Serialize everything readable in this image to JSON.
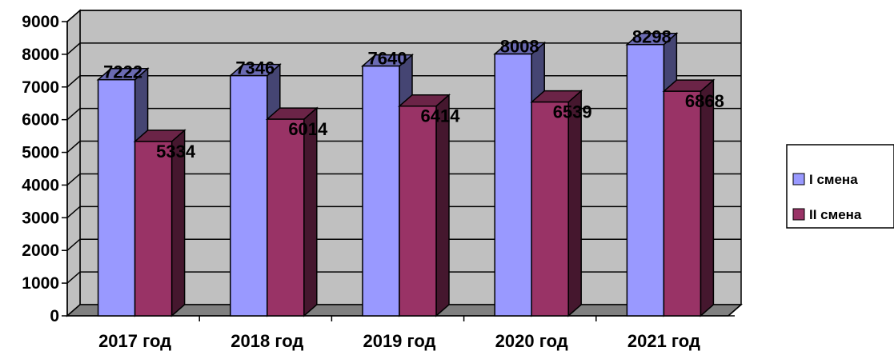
{
  "chart_data": {
    "type": "bar",
    "categories": [
      "2017 год",
      "2018 год",
      "2019 год",
      "2020 год",
      "2021 год"
    ],
    "series": [
      {
        "name": "I смена",
        "values": [
          7222,
          7346,
          7640,
          8008,
          8298
        ],
        "color": "#9999ff"
      },
      {
        "name": "II смена",
        "values": [
          5334,
          6014,
          6414,
          6539,
          6868
        ],
        "color": "#993366"
      }
    ],
    "ylim": [
      0,
      9000
    ],
    "yticks": [
      "0",
      "1000",
      "2000",
      "3000",
      "4000",
      "5000",
      "6000",
      "7000",
      "8000",
      "9000"
    ],
    "grid": true,
    "legend": "right",
    "wall_color": "#c0c0c0",
    "title": "",
    "xlabel": "",
    "ylabel": ""
  }
}
